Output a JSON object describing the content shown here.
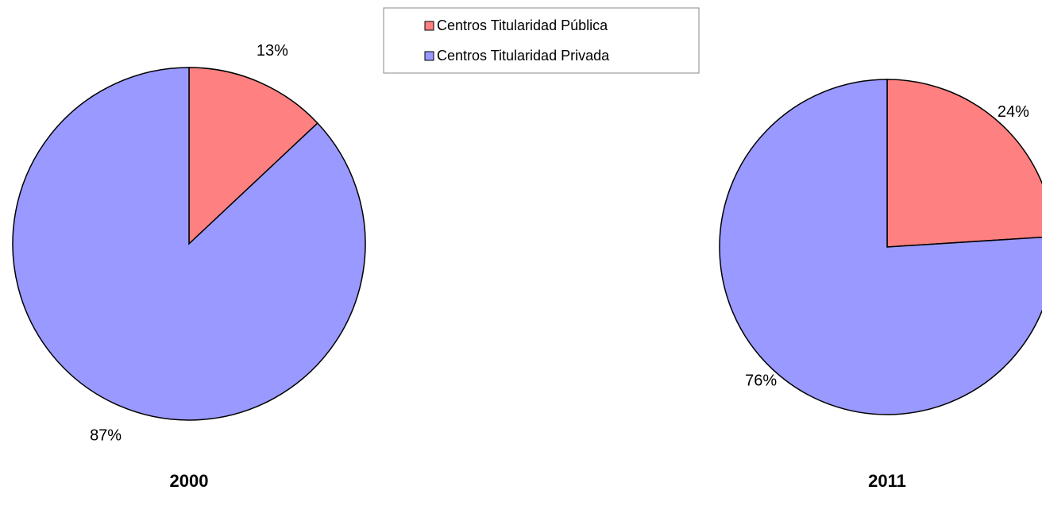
{
  "chart_data": [
    {
      "type": "pie",
      "title": "2000",
      "categories": [
        "Centros Titularidad Pública",
        "Centros Titularidad Privada"
      ],
      "values": [
        13,
        87
      ],
      "value_labels": [
        "13%",
        "87%"
      ],
      "colors": [
        "#ff8080",
        "#9999ff"
      ]
    },
    {
      "type": "pie",
      "title": "2011",
      "values": [
        24,
        76
      ],
      "value_labels": [
        "24%",
        "76%"
      ],
      "colors": [
        "#ff8080",
        "#9999ff"
      ]
    }
  ]
}
